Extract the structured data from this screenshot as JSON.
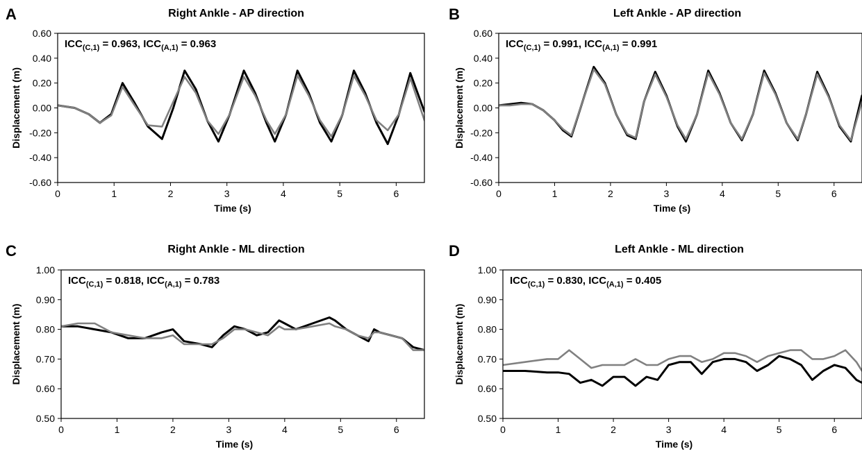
{
  "colors": {
    "measured": "#000000",
    "estimated": "#808080",
    "frame": "#000000"
  },
  "chart_data": [
    {
      "id": "A",
      "type": "line",
      "panel_label": "A",
      "title": "Right Ankle  - AP direction",
      "xlabel": "Time (s)",
      "ylabel": "Displacement  (m)",
      "xlim": [
        0,
        6.5
      ],
      "ylim": [
        -0.6,
        0.6
      ],
      "xticks": [
        0,
        1,
        2,
        3,
        4,
        5,
        6
      ],
      "yticks": [
        -0.6,
        -0.4,
        -0.2,
        0.0,
        0.2,
        0.4,
        0.6
      ],
      "ytick_labels": [
        "-0.60",
        "-0.40",
        "-0.20",
        "0.00",
        "0.20",
        "0.40",
        "0.60"
      ],
      "grid": false,
      "icc": {
        "c1_label": "ICC",
        "c1_sub": "(C,1)",
        "c1_value": "0.963",
        "a1_label": "ICC",
        "a1_sub": "(A,1)",
        "a1_value": "0.963"
      },
      "series": [
        {
          "color": "#000000",
          "x": [
            0,
            0.3,
            0.55,
            0.75,
            0.95,
            1.15,
            1.35,
            1.6,
            1.85,
            2.05,
            2.25,
            2.45,
            2.65,
            2.85,
            3.05,
            3.3,
            3.5,
            3.7,
            3.85,
            4.05,
            4.25,
            4.45,
            4.65,
            4.85,
            5.05,
            5.25,
            5.45,
            5.65,
            5.85,
            6.05,
            6.25,
            6.5
          ],
          "y": [
            0.02,
            0.0,
            -0.05,
            -0.12,
            -0.05,
            0.2,
            0.05,
            -0.15,
            -0.25,
            0.0,
            0.3,
            0.15,
            -0.1,
            -0.27,
            -0.05,
            0.3,
            0.12,
            -0.12,
            -0.27,
            -0.05,
            0.3,
            0.12,
            -0.12,
            -0.27,
            -0.05,
            0.3,
            0.12,
            -0.12,
            -0.29,
            -0.05,
            0.28,
            -0.03
          ]
        },
        {
          "color": "#808080",
          "x": [
            0,
            0.3,
            0.55,
            0.75,
            0.95,
            1.15,
            1.35,
            1.6,
            1.85,
            2.05,
            2.25,
            2.45,
            2.65,
            2.85,
            3.05,
            3.3,
            3.5,
            3.7,
            3.85,
            4.05,
            4.25,
            4.45,
            4.65,
            4.85,
            5.05,
            5.25,
            5.45,
            5.65,
            5.85,
            6.05,
            6.25,
            6.5
          ],
          "y": [
            0.02,
            0.0,
            -0.05,
            -0.12,
            -0.06,
            0.17,
            0.03,
            -0.14,
            -0.15,
            0.05,
            0.25,
            0.12,
            -0.1,
            -0.21,
            -0.05,
            0.25,
            0.1,
            -0.1,
            -0.21,
            -0.05,
            0.26,
            0.1,
            -0.1,
            -0.23,
            -0.05,
            0.26,
            0.1,
            -0.1,
            -0.18,
            -0.05,
            0.24,
            -0.1
          ]
        }
      ]
    },
    {
      "id": "B",
      "type": "line",
      "panel_label": "B",
      "title": "Left Ankle  - AP direction",
      "xlabel": "Time (s)",
      "ylabel": "Displacement  (m)",
      "xlim": [
        0,
        6.5
      ],
      "ylim": [
        -0.6,
        0.6
      ],
      "xticks": [
        0,
        1,
        2,
        3,
        4,
        5,
        6
      ],
      "yticks": [
        -0.6,
        -0.4,
        -0.2,
        0.0,
        0.2,
        0.4,
        0.6
      ],
      "ytick_labels": [
        "-0.60",
        "-0.40",
        "-0.20",
        "0.00",
        "0.20",
        "0.40",
        "0.60"
      ],
      "grid": false,
      "icc": {
        "c1_label": "ICC",
        "c1_sub": "(C,1)",
        "c1_value": "0.991",
        "a1_label": "ICC",
        "a1_sub": "(A,1)",
        "a1_value": "0.991"
      },
      "series": [
        {
          "color": "#000000",
          "x": [
            0,
            0.2,
            0.4,
            0.6,
            0.8,
            1.0,
            1.15,
            1.3,
            1.5,
            1.7,
            1.9,
            2.1,
            2.3,
            2.45,
            2.6,
            2.8,
            3.0,
            3.2,
            3.35,
            3.55,
            3.75,
            3.95,
            4.15,
            4.35,
            4.55,
            4.75,
            4.95,
            5.15,
            5.35,
            5.5,
            5.7,
            5.9,
            6.1,
            6.3,
            6.5
          ],
          "y": [
            0.02,
            0.03,
            0.04,
            0.03,
            -0.02,
            -0.1,
            -0.18,
            -0.23,
            0.05,
            0.33,
            0.2,
            -0.05,
            -0.22,
            -0.25,
            0.05,
            0.29,
            0.1,
            -0.15,
            -0.27,
            -0.05,
            0.3,
            0.12,
            -0.12,
            -0.26,
            -0.05,
            0.3,
            0.12,
            -0.12,
            -0.26,
            -0.05,
            0.29,
            0.1,
            -0.15,
            -0.27,
            0.1
          ]
        },
        {
          "color": "#808080",
          "x": [
            0,
            0.2,
            0.4,
            0.6,
            0.8,
            1.0,
            1.15,
            1.3,
            1.5,
            1.7,
            1.9,
            2.1,
            2.3,
            2.45,
            2.6,
            2.8,
            3.0,
            3.2,
            3.35,
            3.55,
            3.75,
            3.95,
            4.15,
            4.35,
            4.55,
            4.75,
            4.95,
            5.15,
            5.35,
            5.5,
            5.7,
            5.9,
            6.1,
            6.3,
            6.5
          ],
          "y": [
            0.02,
            0.02,
            0.03,
            0.03,
            -0.02,
            -0.1,
            -0.17,
            -0.22,
            0.05,
            0.31,
            0.19,
            -0.05,
            -0.21,
            -0.24,
            0.05,
            0.27,
            0.09,
            -0.14,
            -0.25,
            -0.05,
            0.28,
            0.11,
            -0.12,
            -0.25,
            -0.05,
            0.28,
            0.11,
            -0.12,
            -0.25,
            -0.05,
            0.27,
            0.09,
            -0.14,
            -0.26,
            0.05
          ]
        }
      ]
    },
    {
      "id": "C",
      "type": "line",
      "panel_label": "C",
      "title": "Right Ankle  - ML direction",
      "xlabel": "Time (s)",
      "ylabel": "Displacement  (m)",
      "xlim": [
        0,
        6.5
      ],
      "ylim": [
        0.5,
        1.0
      ],
      "xticks": [
        0,
        1,
        2,
        3,
        4,
        5,
        6
      ],
      "yticks": [
        0.5,
        0.6,
        0.7,
        0.8,
        0.9,
        1.0
      ],
      "ytick_labels": [
        "0.50",
        "0.60",
        "0.70",
        "0.80",
        "0.90",
        "1.00"
      ],
      "grid": false,
      "icc": {
        "c1_label": "ICC",
        "c1_sub": "(C,1)",
        "c1_value": "0.818",
        "a1_label": "ICC",
        "a1_sub": "(A,1)",
        "a1_value": "0.783"
      },
      "series": [
        {
          "color": "#000000",
          "x": [
            0,
            0.3,
            0.6,
            0.9,
            1.2,
            1.5,
            1.8,
            2.0,
            2.2,
            2.5,
            2.7,
            2.9,
            3.1,
            3.3,
            3.5,
            3.7,
            3.9,
            4.0,
            4.2,
            4.5,
            4.8,
            4.9,
            5.1,
            5.3,
            5.5,
            5.6,
            5.7,
            5.9,
            6.1,
            6.3,
            6.5
          ],
          "y": [
            0.81,
            0.81,
            0.8,
            0.79,
            0.77,
            0.77,
            0.79,
            0.8,
            0.76,
            0.75,
            0.74,
            0.78,
            0.81,
            0.8,
            0.78,
            0.79,
            0.83,
            0.82,
            0.8,
            0.82,
            0.84,
            0.83,
            0.8,
            0.78,
            0.76,
            0.8,
            0.79,
            0.78,
            0.77,
            0.74,
            0.73
          ]
        },
        {
          "color": "#808080",
          "x": [
            0,
            0.3,
            0.6,
            0.9,
            1.2,
            1.5,
            1.8,
            2.0,
            2.2,
            2.5,
            2.7,
            2.9,
            3.1,
            3.3,
            3.5,
            3.7,
            3.9,
            4.0,
            4.2,
            4.5,
            4.8,
            4.9,
            5.1,
            5.3,
            5.5,
            5.6,
            5.7,
            5.9,
            6.1,
            6.3,
            6.5
          ],
          "y": [
            0.81,
            0.82,
            0.82,
            0.79,
            0.78,
            0.77,
            0.77,
            0.78,
            0.75,
            0.75,
            0.75,
            0.77,
            0.8,
            0.8,
            0.79,
            0.78,
            0.81,
            0.8,
            0.8,
            0.81,
            0.82,
            0.81,
            0.8,
            0.78,
            0.77,
            0.79,
            0.79,
            0.78,
            0.77,
            0.73,
            0.73
          ]
        }
      ]
    },
    {
      "id": "D",
      "type": "line",
      "panel_label": "D",
      "title": "Left Ankle  - ML direction",
      "xlabel": "Time (s)",
      "ylabel": "Displacement  (m)",
      "xlim": [
        0,
        6.5
      ],
      "ylim": [
        0.5,
        1.0
      ],
      "xticks": [
        0,
        1,
        2,
        3,
        4,
        5,
        6
      ],
      "yticks": [
        0.5,
        0.6,
        0.7,
        0.8,
        0.9,
        1.0
      ],
      "ytick_labels": [
        "0.50",
        "0.60",
        "0.70",
        "0.80",
        "0.90",
        "1.00"
      ],
      "grid": false,
      "icc": {
        "c1_label": "ICC",
        "c1_sub": "(C,1)",
        "c1_value": "0.830",
        "a1_label": "ICC",
        "a1_sub": "(A,1)",
        "a1_value": "0.405"
      },
      "series": [
        {
          "color": "#000000",
          "x": [
            0,
            0.4,
            0.8,
            1.0,
            1.2,
            1.4,
            1.6,
            1.8,
            2.0,
            2.2,
            2.4,
            2.6,
            2.8,
            3.0,
            3.2,
            3.4,
            3.6,
            3.8,
            4.0,
            4.2,
            4.4,
            4.6,
            4.8,
            5.0,
            5.2,
            5.4,
            5.6,
            5.8,
            6.0,
            6.2,
            6.4,
            6.5
          ],
          "y": [
            0.66,
            0.66,
            0.655,
            0.655,
            0.65,
            0.62,
            0.63,
            0.61,
            0.64,
            0.64,
            0.61,
            0.64,
            0.63,
            0.68,
            0.69,
            0.69,
            0.65,
            0.69,
            0.7,
            0.7,
            0.69,
            0.66,
            0.68,
            0.71,
            0.7,
            0.68,
            0.63,
            0.66,
            0.68,
            0.67,
            0.63,
            0.62
          ]
        },
        {
          "color": "#808080",
          "x": [
            0,
            0.4,
            0.8,
            1.0,
            1.2,
            1.4,
            1.6,
            1.8,
            2.0,
            2.2,
            2.4,
            2.6,
            2.8,
            3.0,
            3.2,
            3.4,
            3.6,
            3.8,
            4.0,
            4.2,
            4.4,
            4.6,
            4.8,
            5.0,
            5.2,
            5.4,
            5.6,
            5.8,
            6.0,
            6.2,
            6.4,
            6.5
          ],
          "y": [
            0.68,
            0.69,
            0.7,
            0.7,
            0.73,
            0.7,
            0.67,
            0.68,
            0.68,
            0.68,
            0.7,
            0.68,
            0.68,
            0.7,
            0.71,
            0.71,
            0.69,
            0.7,
            0.72,
            0.72,
            0.71,
            0.69,
            0.71,
            0.72,
            0.73,
            0.73,
            0.7,
            0.7,
            0.71,
            0.73,
            0.69,
            0.66
          ]
        }
      ]
    }
  ]
}
